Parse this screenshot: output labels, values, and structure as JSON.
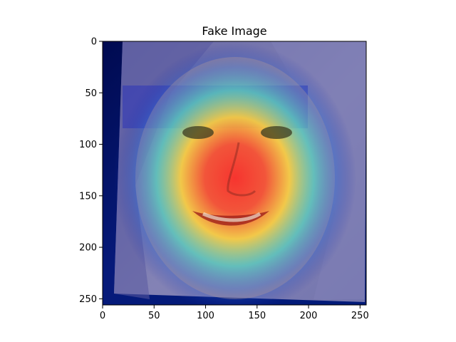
{
  "title": "Fake Image",
  "chart_data": {
    "type": "heatmap",
    "title": "Fake Image",
    "xlabel": "",
    "ylabel": "",
    "x_ticks": [
      0,
      50,
      100,
      150,
      200,
      250
    ],
    "y_ticks": [
      0,
      50,
      100,
      150,
      200,
      250
    ],
    "xlim": [
      0,
      256
    ],
    "ylim": [
      256,
      0
    ],
    "colormap": "jet",
    "grid": false,
    "legend": "none"
  },
  "colors": {
    "base_dark": "#06105a",
    "overlay_blue": "#2a3aa8",
    "hot_red": "#ff3a2a",
    "yellow": "#ffd23a",
    "cyan": "#3fd6c8"
  }
}
